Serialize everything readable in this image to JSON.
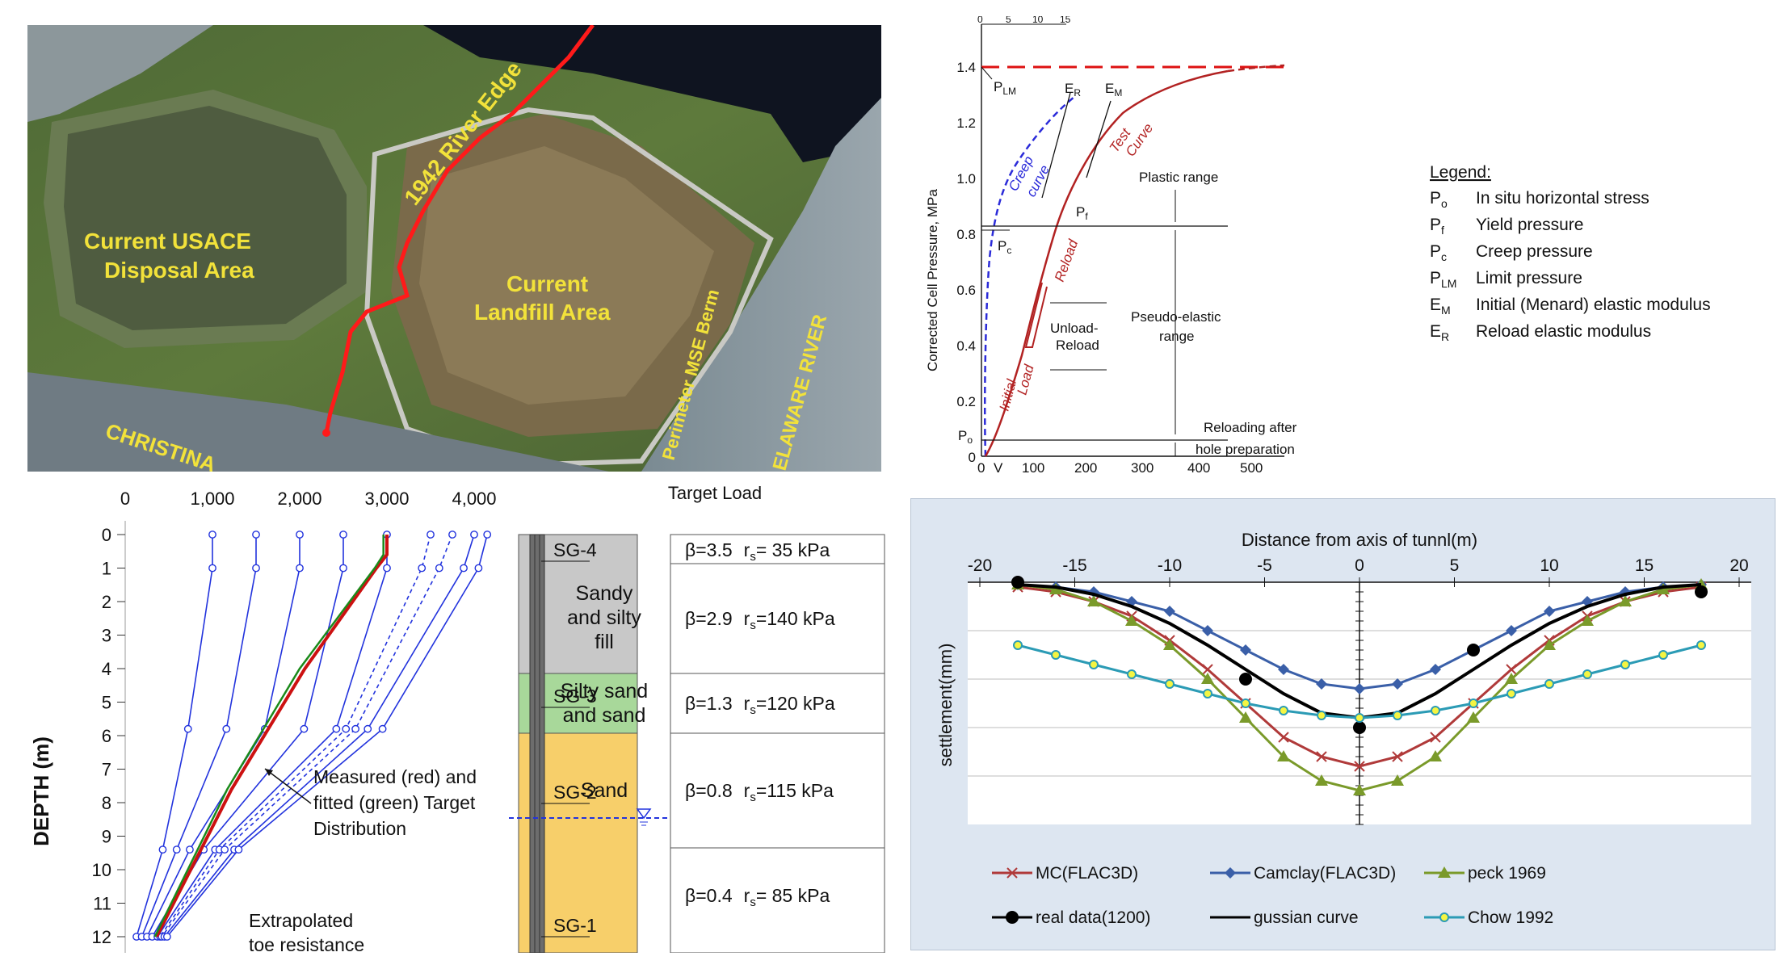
{
  "aerial": {
    "labels": {
      "river_edge": "1942 River Edge",
      "usace_line1": "Current USACE",
      "usace_line2": "Disposal Area",
      "landfill_line1": "Current",
      "landfill_line2": "Landfill Area",
      "berm": "Perimeter MSE Berm",
      "delaware": "ELAWARE RIVER",
      "christina": "CHRISTINA"
    },
    "colors": {
      "river_edge": "#ff1a1a",
      "label": "#f2e23a"
    }
  },
  "pressuremeter": {
    "ylabel": "Corrected Cell Pressure, MPa",
    "y_ticks": [
      "1.4",
      "1.2",
      "1.0",
      "0.8",
      "0.6",
      "0.4",
      "0.2",
      "0"
    ],
    "x_ticks": [
      "0",
      "V",
      "100",
      "200",
      "300",
      "400",
      "500"
    ],
    "top_ticks": [
      "0",
      "5",
      "10",
      "15"
    ],
    "annotations": {
      "p_lm": "LM",
      "p_c": "c",
      "p_f": "f",
      "p_o": "o",
      "e_r": "R",
      "e_m": "M",
      "creep_line1": "Creep",
      "creep_line2": "curve",
      "test_line1": "Test",
      "test_line2": "Curve",
      "reload": "Reload",
      "initial": "Initial",
      "load": "Load",
      "plastic": "Plastic range",
      "unload1": "Unload-",
      "unload2": "Reload",
      "pseudo1": "Pseudo-elastic",
      "pseudo2": "range",
      "reloading1": "Reloading after",
      "reloading2": "hole preparation"
    },
    "legend": {
      "title": "Legend:",
      "items": [
        {
          "symbol": "P",
          "sub": "o",
          "text": "In situ horizontal stress"
        },
        {
          "symbol": "P",
          "sub": "f",
          "text": "Yield pressure"
        },
        {
          "symbol": "P",
          "sub": "c",
          "text": "Creep pressure"
        },
        {
          "symbol": "P",
          "sub": "LM",
          "text": "Limit pressure"
        },
        {
          "symbol": "E",
          "sub": "M",
          "text": "Initial (Menard) elastic modulus"
        },
        {
          "symbol": "E",
          "sub": "R",
          "text": "Reload elastic modulus"
        }
      ]
    },
    "colors": {
      "test": "#b22222",
      "creep": "#2b2bd9",
      "limit": "#dd1111"
    }
  },
  "depth_chart": {
    "ylabel": "DEPTH  (m)",
    "x_ticks": [
      "0",
      "1,000",
      "2,000",
      "3,000",
      "4,000"
    ],
    "y_ticks": [
      "0",
      "1",
      "2",
      "3",
      "4",
      "5",
      "6",
      "7",
      "8",
      "9",
      "10",
      "11",
      "12"
    ],
    "top_label": "Target Load",
    "annotation_line1": "Measured (red) and",
    "annotation_line2": "fitted (green) Target",
    "annotation_line3": "Distribution",
    "extrap_line1": "Extrapolated",
    "extrap_line2": "toe resistance",
    "gauges": [
      "SG-4",
      "SG-3",
      "SG-2",
      "SG-1"
    ],
    "layers": [
      {
        "name_lines": [
          "Sandy",
          "and silty",
          "fill"
        ],
        "color": "#c8c8c8"
      },
      {
        "name_lines": [
          "Silty sand",
          "and sand"
        ],
        "color": "#a8d89a"
      },
      {
        "name_lines": [
          "Sand"
        ],
        "color": "#f7cf6a"
      }
    ],
    "params": [
      {
        "beta": "β=3.5",
        "rs": "r",
        "sub": "s",
        "val": "=  35 kPa"
      },
      {
        "beta": "β=2.9",
        "rs": "r",
        "sub": "s",
        "val": "=140 kPa"
      },
      {
        "beta": "β=1.3",
        "rs": "r",
        "sub": "s",
        "val": "=120 kPa"
      },
      {
        "beta": "β=0.8",
        "rs": "r",
        "sub": "s",
        "val": "=115 kPa"
      },
      {
        "beta": "β=0.4",
        "rs": "r",
        "sub": "s",
        "val": "=  85 kPa"
      }
    ],
    "series": [
      {
        "name": "load-1000",
        "style": "solid",
        "points": [
          [
            1000,
            0
          ],
          [
            1000,
            1
          ],
          [
            720,
            5.8
          ],
          [
            430,
            9.4
          ],
          [
            130,
            12
          ]
        ]
      },
      {
        "name": "load-1500",
        "style": "solid",
        "points": [
          [
            1500,
            0
          ],
          [
            1500,
            1
          ],
          [
            1160,
            5.8
          ],
          [
            590,
            9.4
          ],
          [
            190,
            12
          ]
        ]
      },
      {
        "name": "load-2000",
        "style": "solid",
        "points": [
          [
            2000,
            0
          ],
          [
            2000,
            1
          ],
          [
            1600,
            5.8
          ],
          [
            740,
            9.4
          ],
          [
            250,
            12
          ]
        ]
      },
      {
        "name": "load-2500",
        "style": "solid",
        "points": [
          [
            2500,
            0
          ],
          [
            2500,
            1
          ],
          [
            2050,
            5.8
          ],
          [
            900,
            9.4
          ],
          [
            310,
            12
          ]
        ]
      },
      {
        "name": "load-3000",
        "style": "solid",
        "points": [
          [
            3000,
            0
          ],
          [
            3000,
            1
          ],
          [
            2420,
            5.8
          ],
          [
            1030,
            9.4
          ],
          [
            370,
            12
          ]
        ]
      },
      {
        "name": "load-3500-dash",
        "style": "dashed",
        "points": [
          [
            3500,
            0
          ],
          [
            3400,
            1
          ],
          [
            2530,
            5.8
          ],
          [
            1080,
            9.4
          ],
          [
            400,
            12
          ]
        ]
      },
      {
        "name": "load-3750-dash",
        "style": "dashed",
        "points": [
          [
            3750,
            0
          ],
          [
            3600,
            1
          ],
          [
            2640,
            5.8
          ],
          [
            1140,
            9.4
          ],
          [
            420,
            12
          ]
        ]
      },
      {
        "name": "load-4000",
        "style": "solid",
        "points": [
          [
            4000,
            0
          ],
          [
            3880,
            1
          ],
          [
            2780,
            5.8
          ],
          [
            1250,
            9.4
          ],
          [
            450,
            12
          ]
        ]
      },
      {
        "name": "load-4000b",
        "style": "solid",
        "points": [
          [
            4150,
            0
          ],
          [
            4050,
            1
          ],
          [
            2950,
            5.8
          ],
          [
            1300,
            9.4
          ],
          [
            480,
            12
          ]
        ]
      }
    ],
    "measured": [
      [
        3000,
        0
      ],
      [
        3000,
        0.6
      ],
      [
        2880,
        1.0
      ],
      [
        2060,
        4.0
      ],
      [
        1220,
        7.6
      ],
      [
        360,
        12.0
      ]
    ],
    "fitted": [
      [
        2960,
        0
      ],
      [
        2960,
        0.6
      ],
      [
        2860,
        1.0
      ],
      [
        2000,
        4.0
      ],
      [
        1170,
        7.6
      ],
      [
        340,
        12.0
      ]
    ],
    "colors": {
      "load": "#2233dd",
      "measured": "#cc1111",
      "fitted": "#1a8a1a",
      "water": "#2233dd"
    }
  },
  "chart_data": {
    "type": "line",
    "title": "Distance from axis of tunnl(m)",
    "xlabel": "Distance from axis of tunnl(m)",
    "ylabel": "settlement(mm)",
    "xlim": [
      -20,
      20
    ],
    "ylim": [
      -50,
      0
    ],
    "x_ticks": [
      -20,
      -15,
      -10,
      -5,
      0,
      5,
      10,
      15,
      20
    ],
    "series": [
      {
        "name": "MC(FLAC3D)",
        "marker": "x",
        "color": "#b03a3a",
        "x": [
          -18,
          -16,
          -14,
          -12,
          -10,
          -8,
          -6,
          -4,
          -2,
          0,
          2,
          4,
          6,
          8,
          10,
          12,
          14,
          16,
          18
        ],
        "y": [
          -1,
          -2,
          -4,
          -7,
          -12,
          -18,
          -25,
          -32,
          -36,
          -38,
          -36,
          -32,
          -25,
          -18,
          -12,
          -7,
          -4,
          -2,
          -1
        ]
      },
      {
        "name": "Camclay(FLAC3D)",
        "marker": "diamond",
        "color": "#3a5fa8",
        "x": [
          -18,
          -16,
          -14,
          -12,
          -10,
          -8,
          -6,
          -4,
          -2,
          0,
          2,
          4,
          6,
          8,
          10,
          12,
          14,
          16,
          18
        ],
        "y": [
          -0.5,
          -1,
          -2,
          -4,
          -6,
          -10,
          -14,
          -18,
          -21,
          -22,
          -21,
          -18,
          -14,
          -10,
          -6,
          -4,
          -2,
          -1,
          -0.5
        ]
      },
      {
        "name": "peck 1969",
        "marker": "triangle",
        "color": "#7a9a2a",
        "x": [
          -18,
          -16,
          -14,
          -12,
          -10,
          -8,
          -6,
          -4,
          -2,
          0,
          2,
          4,
          6,
          8,
          10,
          12,
          14,
          16,
          18
        ],
        "y": [
          -0.5,
          -1.5,
          -4,
          -8,
          -13,
          -20,
          -28,
          -36,
          -41,
          -43,
          -41,
          -36,
          -28,
          -20,
          -13,
          -8,
          -4,
          -1.5,
          -0.5
        ]
      },
      {
        "name": "real data(1200)",
        "marker": "circle",
        "color": "#000000",
        "x": [
          -18,
          -6,
          0,
          6,
          18
        ],
        "y": [
          0,
          -20,
          -30,
          -14,
          -2
        ]
      },
      {
        "name": "gussian curve",
        "marker": "none",
        "color": "#000000",
        "x": [
          -18,
          -16,
          -14,
          -12,
          -10,
          -8,
          -6,
          -4,
          -2,
          0,
          2,
          4,
          6,
          8,
          10,
          12,
          14,
          16,
          18
        ],
        "y": [
          -0.5,
          -1,
          -2.5,
          -5,
          -8.5,
          -13,
          -18,
          -23,
          -27,
          -28,
          -27,
          -23,
          -18,
          -13,
          -8.5,
          -5,
          -2.5,
          -1,
          -0.5
        ]
      },
      {
        "name": "Chow 1992",
        "marker": "circle-small",
        "color": "#2b9bb5",
        "x": [
          -18,
          -16,
          -14,
          -12,
          -10,
          -8,
          -6,
          -4,
          -2,
          0,
          2,
          4,
          6,
          8,
          10,
          12,
          14,
          16,
          18
        ],
        "y": [
          -13,
          -15,
          -17,
          -19,
          -21,
          -23,
          -25,
          -26.5,
          -27.5,
          -28,
          -27.5,
          -26.5,
          -25,
          -23,
          -21,
          -19,
          -17,
          -15,
          -13
        ]
      }
    ]
  }
}
